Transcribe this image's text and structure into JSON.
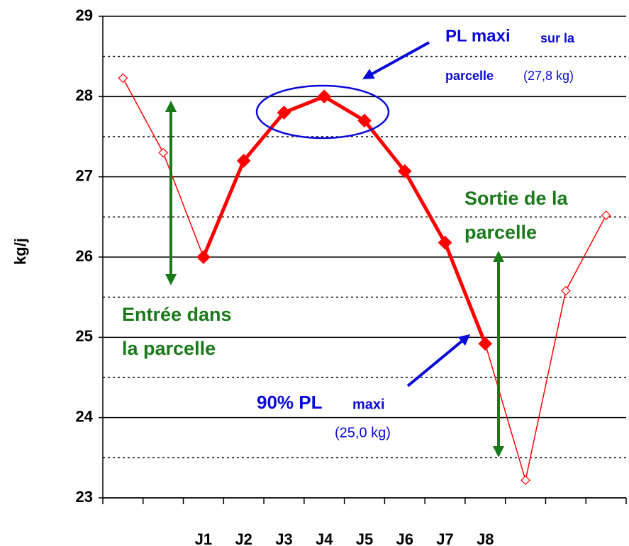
{
  "chart_data": {
    "type": "line",
    "y_label": "kg/j",
    "categories": [
      null,
      null,
      "J1",
      "J2",
      "J3",
      "J4",
      "J5",
      "J6",
      "J7",
      "J8",
      null,
      null,
      null
    ],
    "series": [
      {
        "color": "#ff0000",
        "style": "thin",
        "values": [
          28.23,
          27.3,
          26.0,
          null,
          null,
          null,
          null,
          null,
          null,
          24.92,
          23.22,
          25.58,
          26.52
        ]
      },
      {
        "color": "#ff0000",
        "style": "thick",
        "values": [
          null,
          null,
          26.0,
          27.2,
          27.8,
          28.0,
          27.7,
          27.07,
          26.18,
          24.92,
          null,
          null,
          null
        ]
      }
    ],
    "ylim": [
      23,
      29
    ],
    "yticks": [
      23,
      24,
      25,
      26,
      27,
      28,
      29
    ],
    "minor_yticks": [
      23.5,
      24.5,
      25.5,
      26.5,
      27.5,
      28.5
    ],
    "grid": true,
    "annotations": [
      "PL maxi",
      "sur la",
      "parcelle",
      "(27,8 kg)",
      "Entrée dans",
      "la parcelle",
      "Sortie de la",
      "parcelle",
      "90% PL",
      "maxi",
      "(25,0 kg)"
    ]
  }
}
